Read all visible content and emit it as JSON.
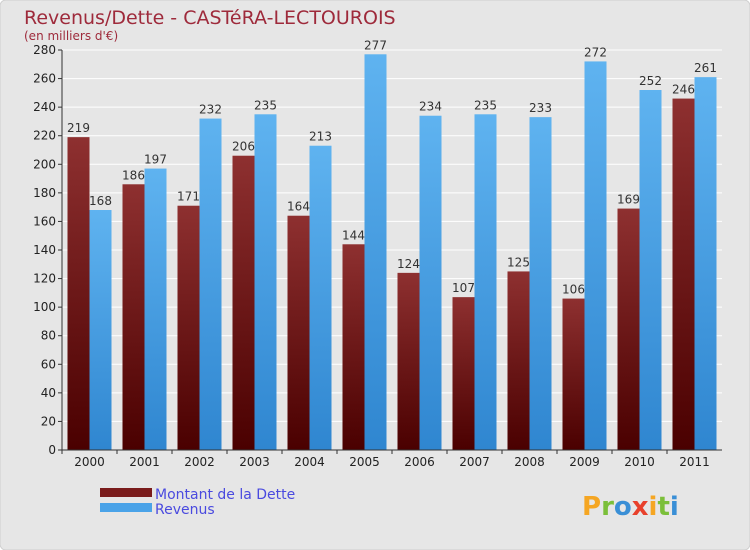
{
  "chart_data": {
    "type": "bar",
    "title": "Revenus/Dette - CASTéRA-LECTOUROIS",
    "subtitle": "(en milliers d'€)",
    "categories": [
      "2000",
      "2001",
      "2002",
      "2003",
      "2004",
      "2005",
      "2006",
      "2007",
      "2008",
      "2009",
      "2010",
      "2011"
    ],
    "series": [
      {
        "name": "Montant de la Dette",
        "color": "#7a1c1c",
        "values": [
          219,
          186,
          171,
          206,
          164,
          144,
          124,
          107,
          125,
          106,
          169,
          246
        ]
      },
      {
        "name": "Revenus",
        "color": "#4aa3e8",
        "values": [
          168,
          197,
          232,
          235,
          213,
          277,
          234,
          235,
          233,
          272,
          252,
          261
        ]
      }
    ],
    "ylim": [
      0,
      280
    ],
    "ytick_step": 20,
    "ytick_labels": [
      "0",
      "20",
      "40",
      "60",
      "80",
      "100",
      "120",
      "140",
      "160",
      "180",
      "200",
      "220",
      "240",
      "260",
      "280"
    ],
    "grid": true,
    "legend_position": "bottom-left",
    "xlabel": "",
    "ylabel": ""
  },
  "logo": {
    "letters": [
      "P",
      "r",
      "o",
      "x",
      "i",
      "t",
      "i"
    ],
    "colors": [
      "#f5a623",
      "#7bbf3a",
      "#3a8fd6",
      "#e8412c",
      "#f5a623",
      "#7bbf3a",
      "#3a8fd6"
    ]
  },
  "colors": {
    "background": "#e6e6e6",
    "title": "#9e2a3b",
    "legend_text": "#4a4adf",
    "grid": "#ffffff"
  }
}
